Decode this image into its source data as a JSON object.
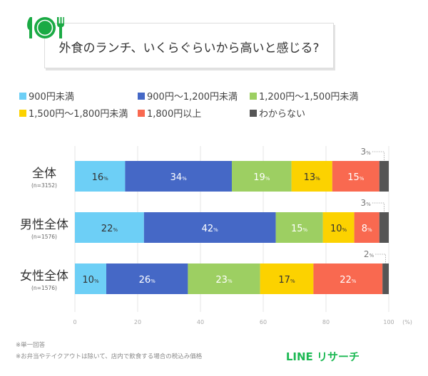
{
  "title": "外食のランチ、いくらぐらいから高いと感じる?",
  "icon": "plate-knife-fork-icon",
  "brand": "LINE リサーチ",
  "notes": [
    "※単一回答",
    "※お弁当やテイクアウトは除いて、店内で飲食する場合の税込み価格"
  ],
  "chart_data": {
    "type": "bar",
    "orientation": "horizontal",
    "stacked": true,
    "title": "外食のランチ、いくらぐらいから高いと感じる?",
    "categories": [
      "全体",
      "男性全体",
      "女性全体"
    ],
    "category_notes": [
      "(n=3152)",
      "(n=1576)",
      "(n=1576)"
    ],
    "series": [
      {
        "name": "900円未満",
        "color": "#6dcff6",
        "values": [
          16,
          22,
          10
        ]
      },
      {
        "name": "900円～1,200円未満",
        "color": "#4568c6",
        "values": [
          34,
          42,
          26
        ]
      },
      {
        "name": "1,200円～1,500円未満",
        "color": "#9dcf62",
        "values": [
          19,
          15,
          23
        ]
      },
      {
        "name": "1,500円～1,800円未満",
        "color": "#fcd200",
        "values": [
          13,
          10,
          17
        ]
      },
      {
        "name": "1,800円以上",
        "color": "#f96950",
        "values": [
          15,
          8,
          22
        ]
      },
      {
        "name": "わからない",
        "color": "#555555",
        "values": [
          3,
          3,
          2
        ]
      }
    ],
    "value_suffix": "%",
    "xlim": [
      0,
      100
    ],
    "xticks": [
      0,
      20,
      40,
      60,
      80,
      100
    ],
    "xunit": "(%)",
    "grid": true,
    "legend_position": "top"
  }
}
